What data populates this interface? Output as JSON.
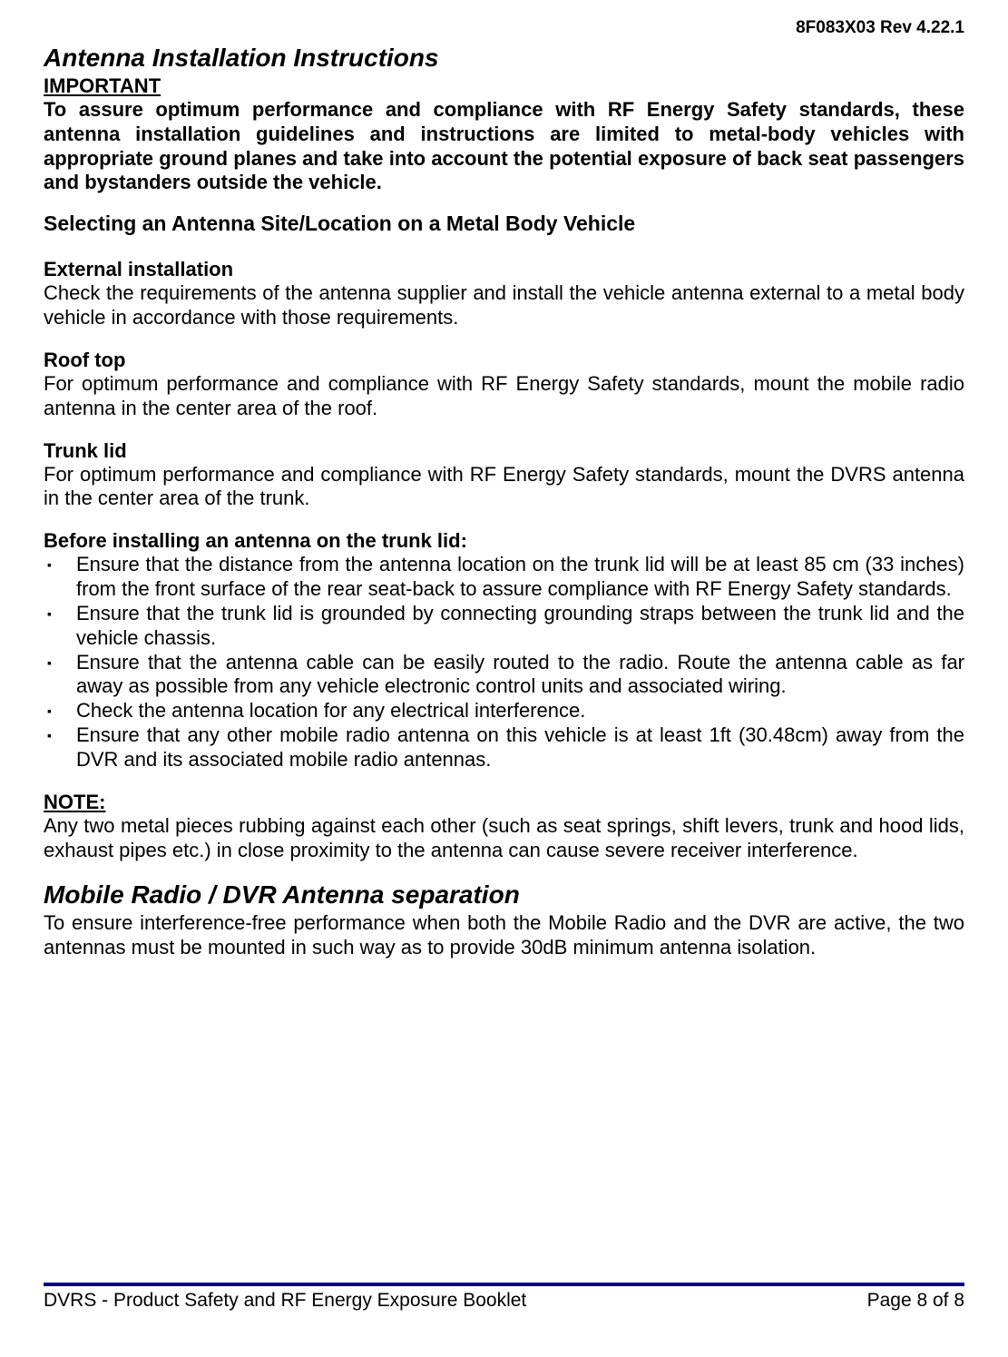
{
  "colors": {
    "text": "#000000",
    "background": "#ffffff",
    "footer_rule": "#000080"
  },
  "fonts": {
    "body_family": "Arial",
    "body_size_pt": 16,
    "heading_size_pt": 21,
    "heading_style": "bold italic"
  },
  "header": {
    "doc_ref": "8F083X03 Rev 4.22.1"
  },
  "section1": {
    "title": "Antenna Installation Instructions",
    "important_label": "IMPORTANT",
    "important_text": "To assure optimum performance and compliance with RF Energy Safety standards, these antenna installation guidelines and instructions are limited to metal-body vehicles with appropriate ground planes and take into account the potential exposure of back seat passengers and bystanders outside the vehicle.",
    "selecting_title": "Selecting an Antenna Site/Location on a Metal Body Vehicle",
    "external": {
      "title": "External installation",
      "text": "Check the requirements of the antenna supplier and install the vehicle antenna external to a metal body vehicle in accordance with those requirements."
    },
    "roof": {
      "title": "Roof top",
      "text": "For optimum performance and compliance with RF Energy Safety standards, mount the mobile radio antenna in the center area of the roof."
    },
    "trunk": {
      "title": "Trunk lid",
      "text": "For optimum performance and compliance with RF Energy Safety standards, mount the DVRS antenna in the center area of the trunk."
    },
    "before_title": "Before installing an antenna on the trunk lid:",
    "bullets": [
      "Ensure that the distance from the antenna location on the trunk lid will be at least 85 cm (33 inches) from the front surface of the rear seat-back to assure compliance with RF Energy Safety standards.",
      "Ensure that the trunk lid is grounded by connecting grounding straps between the trunk lid and the vehicle chassis.",
      "Ensure that the antenna cable can be easily routed to the radio. Route the antenna cable as far away as possible from any vehicle electronic control units and associated wiring.",
      "Check the antenna location for any electrical interference.",
      "Ensure that any other mobile radio antenna on this vehicle is at least 1ft (30.48cm) away from the DVR and its associated mobile radio antennas."
    ],
    "note_label": "NOTE:",
    "note_text": "Any two metal pieces rubbing against each other (such as seat springs, shift levers, trunk and hood lids, exhaust pipes etc.) in close proximity to the antenna can cause severe receiver interference."
  },
  "section2": {
    "title": "Mobile Radio / DVR Antenna separation",
    "text": "To ensure interference-free performance when both the Mobile Radio and the DVR are active, the two antennas must be mounted in such way as to provide 30dB minimum antenna isolation."
  },
  "footer": {
    "left": "DVRS - Product Safety and RF Energy Exposure Booklet",
    "right": "Page 8 of 8"
  }
}
